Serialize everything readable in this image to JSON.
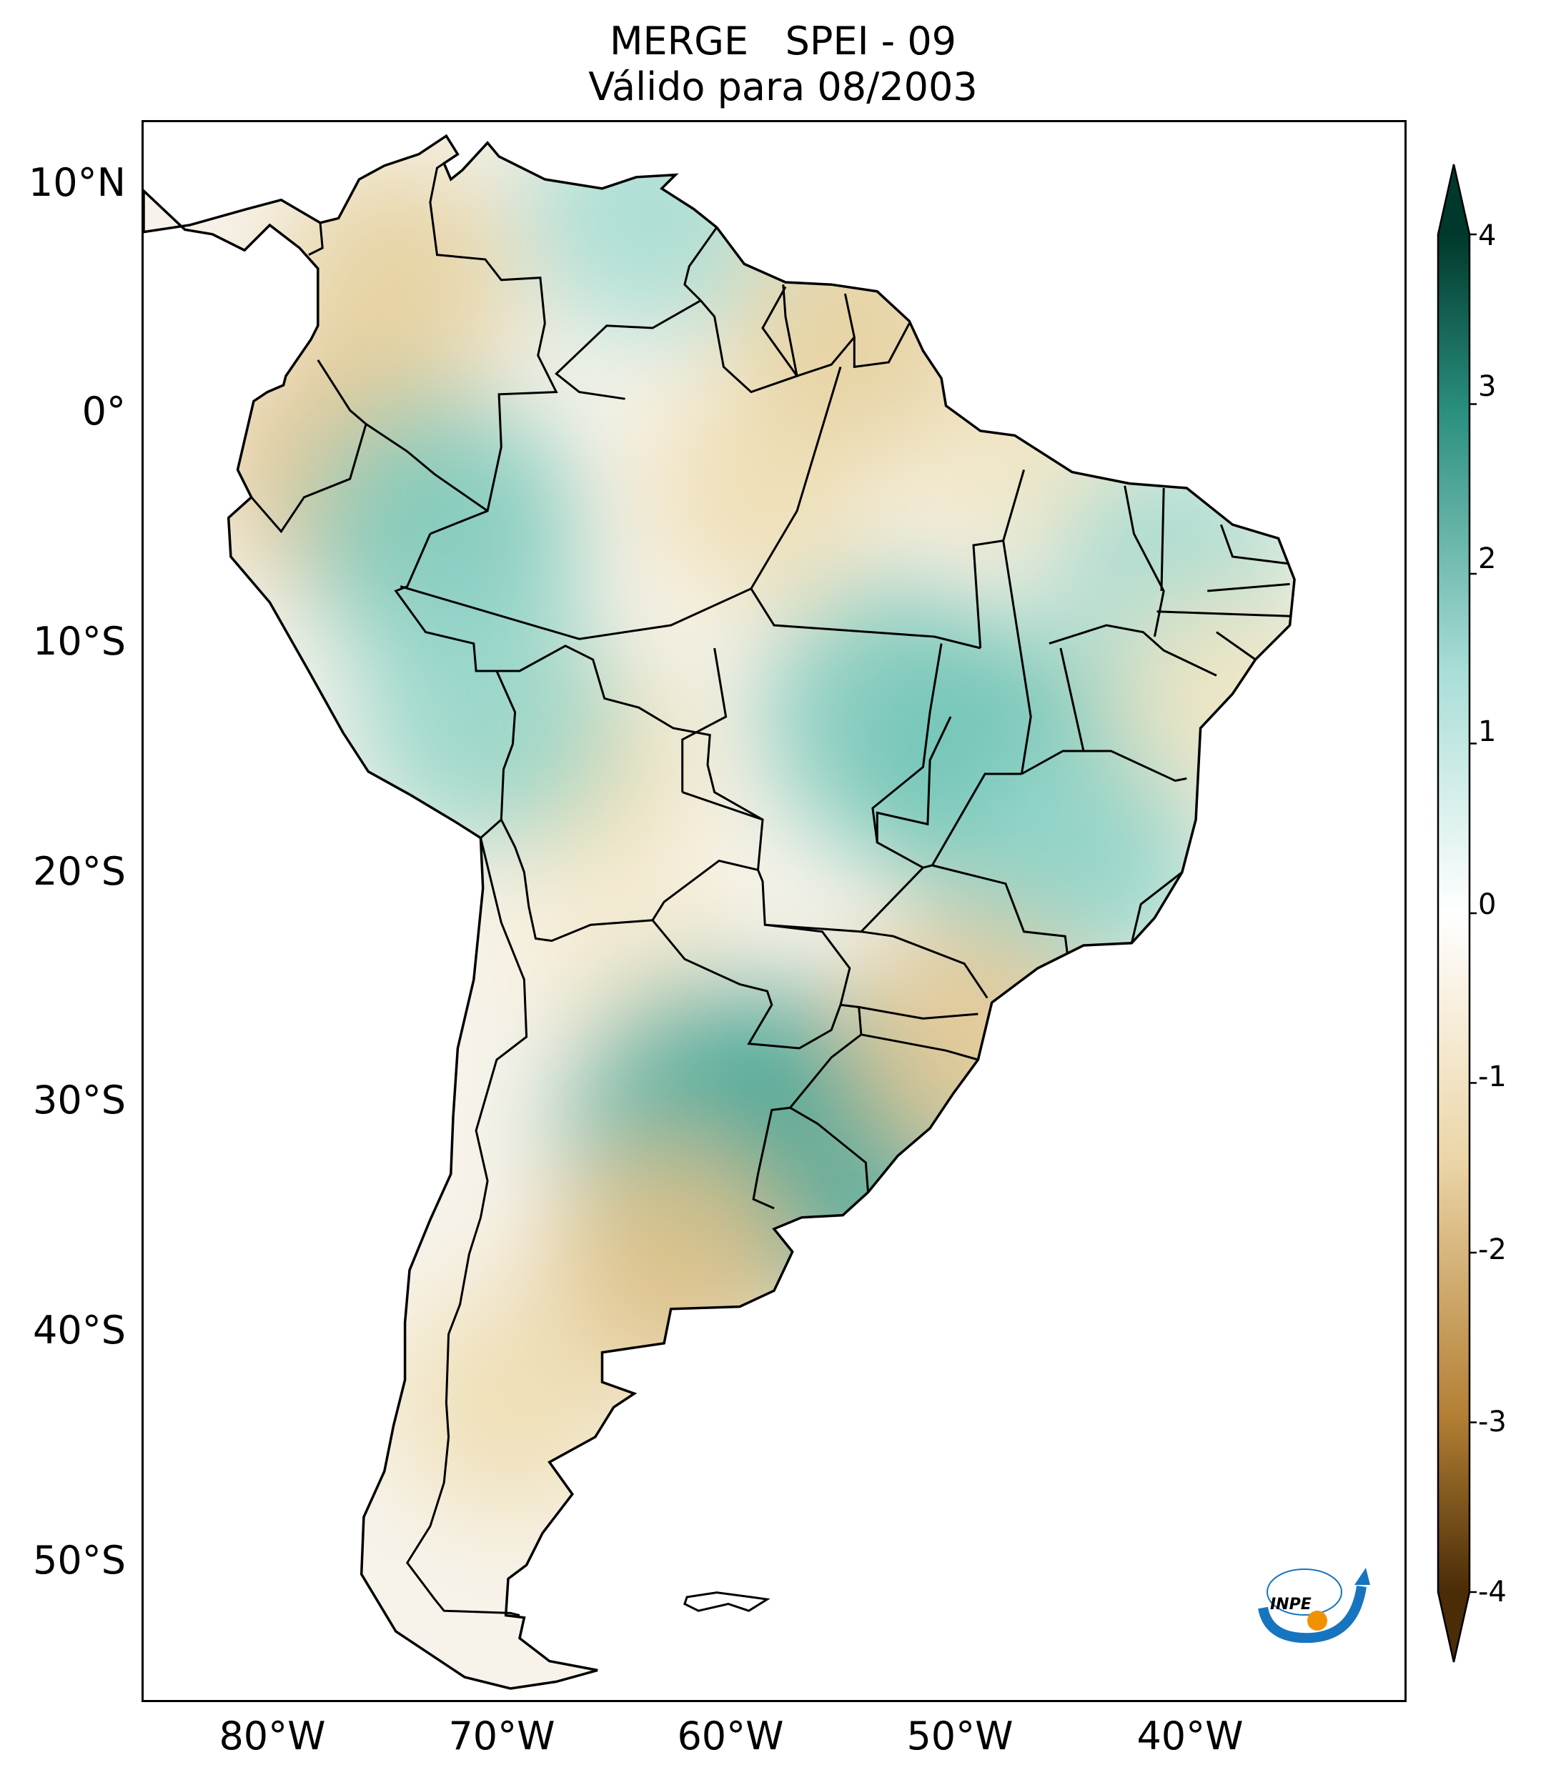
{
  "header": {
    "title_line1": "MERGE   SPEI - 09",
    "title_line2": "Válido para 08/2003"
  },
  "axes": {
    "lat_labels": [
      "10°N",
      "0°",
      "10°S",
      "20°S",
      "30°S",
      "40°S",
      "50°S"
    ],
    "lon_labels": [
      "80°W",
      "70°W",
      "60°W",
      "50°W",
      "40°W"
    ]
  },
  "colorbar": {
    "tick_labels": [
      "4",
      "3",
      "2",
      "1",
      "0",
      "-1",
      "-2",
      "-3",
      "-4"
    ],
    "colors": {
      "max": "#00392b",
      "high": "#2a8f7f",
      "mid_high": "#a8ddd6",
      "zero": "#ffffff",
      "mid_low": "#ecd6a8",
      "low": "#b37f34",
      "min": "#4a2c07"
    }
  },
  "chart_data": {
    "type": "heatmap",
    "variable": "SPEI - 09",
    "dataset": "MERGE",
    "valid_date": "08/2003",
    "lat_range": [
      -56,
      13
    ],
    "lon_range": [
      -85,
      -30
    ],
    "value_range": [
      -4,
      4
    ],
    "extend": "both",
    "colormap": "BrBG",
    "regions": [
      {
        "lon": -74,
        "lat": 6,
        "spei": -1.2
      },
      {
        "lon": -77,
        "lat": -2,
        "spei": -1.3
      },
      {
        "lon": -72,
        "lat": -5,
        "spei": 1.8
      },
      {
        "lon": -63,
        "lat": 9,
        "spei": 1.3
      },
      {
        "lon": -58,
        "lat": -3,
        "spei": -1.0
      },
      {
        "lon": -47,
        "lat": -1,
        "spei": -0.8
      },
      {
        "lon": -54,
        "lat": 4,
        "spei": -1.2
      },
      {
        "lon": -52,
        "lat": -13,
        "spei": 1.8
      },
      {
        "lon": -47,
        "lat": -16,
        "spei": 2.0
      },
      {
        "lon": -44,
        "lat": -19,
        "spei": 1.5
      },
      {
        "lon": -40,
        "lat": -7,
        "spei": 1.4
      },
      {
        "lon": -66,
        "lat": -15,
        "spei": -1.0
      },
      {
        "lon": -64,
        "lat": -23,
        "spei": -0.6
      },
      {
        "lon": -70,
        "lat": -13,
        "spei": 1.5
      },
      {
        "lon": -60,
        "lat": -31,
        "spei": 2.3
      },
      {
        "lon": -55,
        "lat": -32,
        "spei": 2.4
      },
      {
        "lon": -62,
        "lat": -37,
        "spei": -1.4
      },
      {
        "lon": -69,
        "lat": -43,
        "spei": -1.0
      },
      {
        "lon": -49,
        "lat": -27,
        "spei": -1.3
      },
      {
        "lon": -38,
        "lat": -12,
        "spei": -0.8
      }
    ]
  },
  "logo": {
    "text": "INPE",
    "colors": {
      "arc": "#1775c0",
      "dot": "#f29100"
    }
  }
}
